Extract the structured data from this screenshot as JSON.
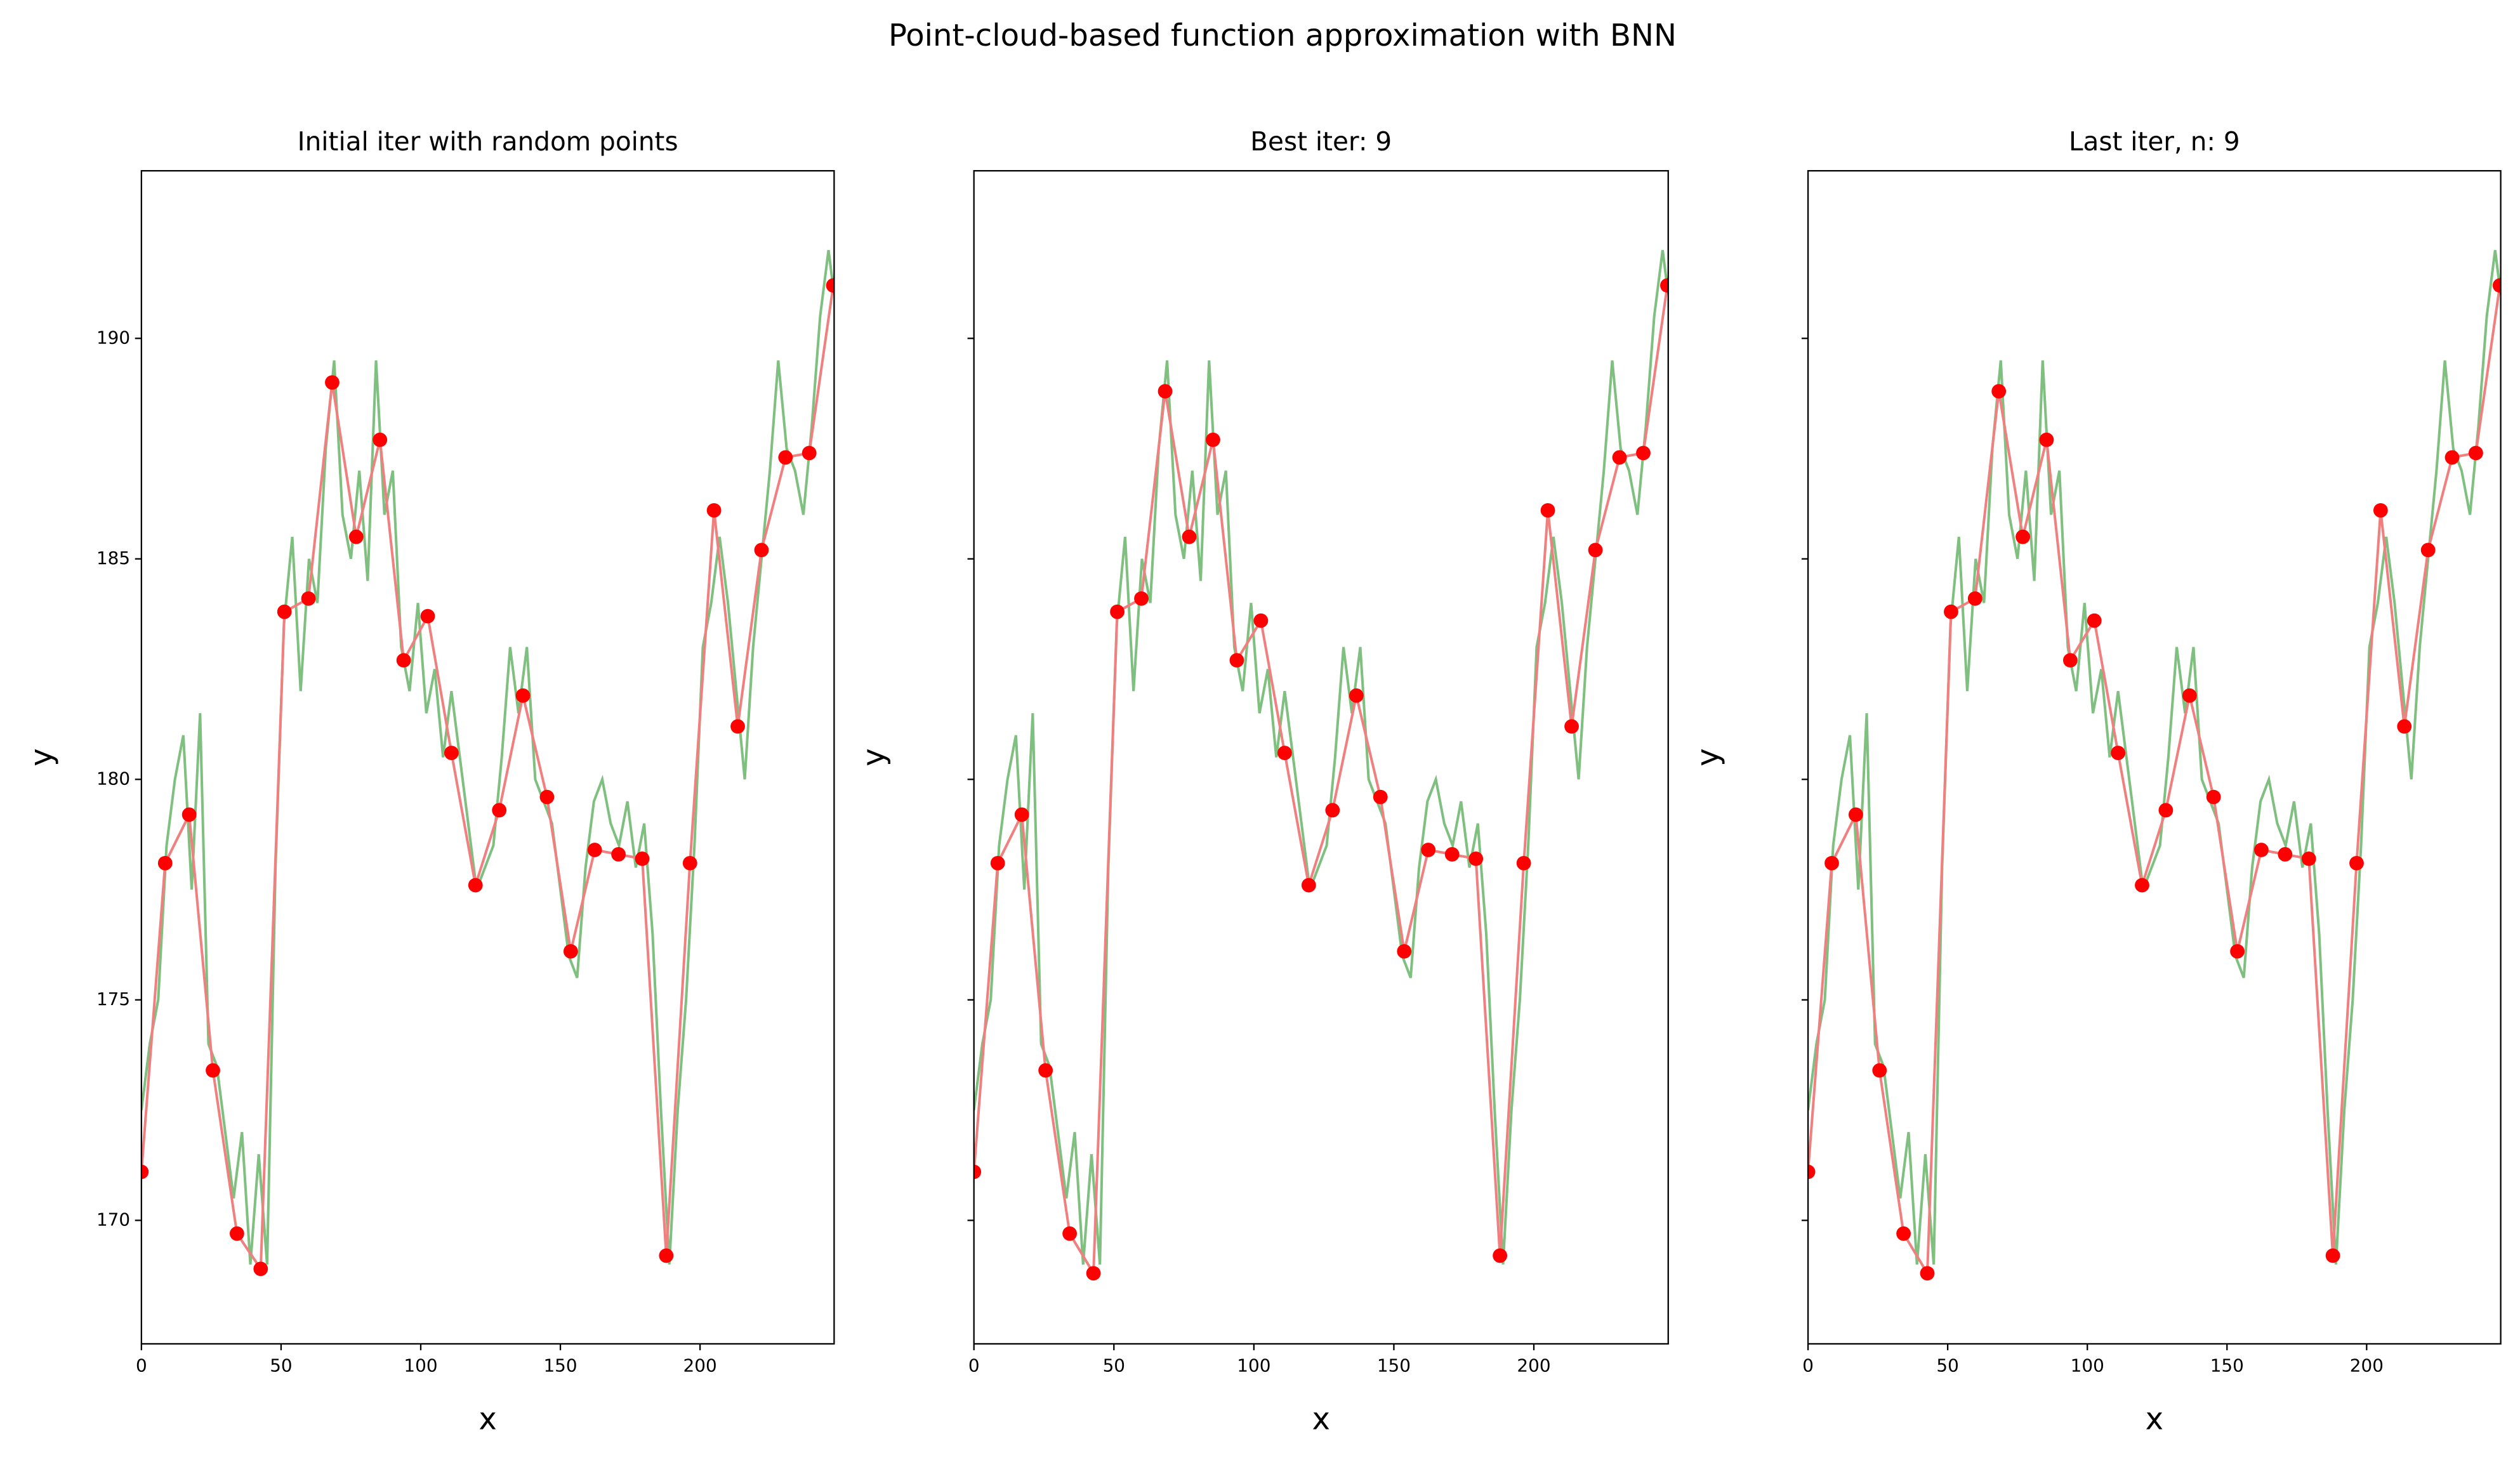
{
  "title": "Point-cloud-based function approximation with BNN",
  "chart_data": [
    {
      "type": "line",
      "title": "Initial iter with random points",
      "x_label": "x",
      "y_label": "y",
      "xlim": [
        0,
        248
      ],
      "ylim": [
        167.2,
        193.8
      ],
      "xticks": [
        0,
        50,
        100,
        150,
        200
      ],
      "yticks": [
        170,
        175,
        180,
        185,
        190
      ],
      "show_ytick_labels": true,
      "series": [
        {
          "color": "#7fbf7f",
          "x": [
            0,
            3,
            6,
            9,
            12,
            15,
            18,
            21,
            24,
            27,
            30,
            33,
            36,
            39,
            42,
            45,
            48,
            51,
            54,
            57,
            60,
            63,
            66,
            69,
            72,
            75,
            78,
            81,
            84,
            87,
            90,
            93,
            96,
            99,
            102,
            105,
            108,
            111,
            114,
            117,
            120,
            123,
            126,
            129,
            132,
            135,
            138,
            141,
            144,
            147,
            150,
            153,
            156,
            159,
            162,
            165,
            168,
            171,
            174,
            177,
            180,
            183,
            186,
            189,
            192,
            195,
            198,
            201,
            204,
            207,
            210,
            213,
            216,
            219,
            222,
            225,
            228,
            231,
            234,
            237,
            240,
            243,
            246,
            248
          ],
          "values": [
            172.5,
            174,
            175,
            178.5,
            180,
            181,
            177.5,
            181.5,
            174,
            173.5,
            172,
            170.5,
            172,
            169,
            171.5,
            169,
            178,
            183.5,
            185.5,
            182,
            185,
            184,
            187.5,
            189.5,
            186,
            185,
            187,
            184.5,
            189.5,
            186,
            187,
            183,
            182,
            184,
            181.5,
            182.5,
            180.5,
            182,
            180.5,
            179,
            177.5,
            178,
            178.5,
            180.5,
            183,
            181.5,
            183,
            180,
            179.5,
            179,
            177.5,
            176,
            175.5,
            178,
            179.5,
            180,
            179,
            178.5,
            179.5,
            178,
            179,
            176.5,
            172.5,
            169,
            172.5,
            175,
            178.5,
            183,
            184,
            185.5,
            184,
            182,
            180,
            183,
            185,
            187,
            189.5,
            187.5,
            187,
            186,
            188,
            190.5,
            192,
            191
          ]
        },
        {
          "color": "#ff0000",
          "line_color": "#f08080",
          "marker": "o",
          "x": [
            0,
            8.5,
            17.1,
            25.6,
            34.2,
            42.7,
            51.2,
            59.8,
            68.3,
            76.9,
            85.4,
            93.9,
            102.5,
            111,
            119.6,
            128.1,
            136.6,
            145.2,
            153.7,
            162.3,
            170.8,
            179.3,
            187.9,
            196.4,
            205,
            213.5,
            222,
            230.6,
            239.1,
            247.7
          ],
          "values": [
            171.1,
            178.1,
            179.2,
            173.4,
            169.7,
            168.9,
            183.8,
            184.1,
            189.0,
            185.5,
            187.7,
            182.7,
            183.7,
            180.6,
            177.6,
            179.3,
            181.9,
            179.6,
            176.1,
            178.4,
            178.3,
            178.2,
            169.2,
            178.1,
            186.1,
            181.2,
            185.2,
            187.3,
            187.4,
            191.2
          ]
        }
      ]
    },
    {
      "type": "line",
      "title": "Best iter: 9",
      "x_label": "x",
      "y_label": "y",
      "xlim": [
        0,
        248
      ],
      "ylim": [
        167.2,
        193.8
      ],
      "xticks": [
        0,
        50,
        100,
        150,
        200
      ],
      "yticks": [
        170,
        175,
        180,
        185,
        190
      ],
      "show_ytick_labels": false,
      "series": [
        {
          "color": "#7fbf7f",
          "x": [
            0,
            3,
            6,
            9,
            12,
            15,
            18,
            21,
            24,
            27,
            30,
            33,
            36,
            39,
            42,
            45,
            48,
            51,
            54,
            57,
            60,
            63,
            66,
            69,
            72,
            75,
            78,
            81,
            84,
            87,
            90,
            93,
            96,
            99,
            102,
            105,
            108,
            111,
            114,
            117,
            120,
            123,
            126,
            129,
            132,
            135,
            138,
            141,
            144,
            147,
            150,
            153,
            156,
            159,
            162,
            165,
            168,
            171,
            174,
            177,
            180,
            183,
            186,
            189,
            192,
            195,
            198,
            201,
            204,
            207,
            210,
            213,
            216,
            219,
            222,
            225,
            228,
            231,
            234,
            237,
            240,
            243,
            246,
            248
          ],
          "values": [
            172.5,
            174,
            175,
            178.5,
            180,
            181,
            177.5,
            181.5,
            174,
            173.5,
            172,
            170.5,
            172,
            169,
            171.5,
            169,
            178,
            183.5,
            185.5,
            182,
            185,
            184,
            187.5,
            189.5,
            186,
            185,
            187,
            184.5,
            189.5,
            186,
            187,
            183,
            182,
            184,
            181.5,
            182.5,
            180.5,
            182,
            180.5,
            179,
            177.5,
            178,
            178.5,
            180.5,
            183,
            181.5,
            183,
            180,
            179.5,
            179,
            177.5,
            176,
            175.5,
            178,
            179.5,
            180,
            179,
            178.5,
            179.5,
            178,
            179,
            176.5,
            172.5,
            169,
            172.5,
            175,
            178.5,
            183,
            184,
            185.5,
            184,
            182,
            180,
            183,
            185,
            187,
            189.5,
            187.5,
            187,
            186,
            188,
            190.5,
            192,
            191
          ]
        },
        {
          "color": "#ff0000",
          "line_color": "#f08080",
          "marker": "o",
          "x": [
            0,
            8.5,
            17.1,
            25.6,
            34.2,
            42.7,
            51.2,
            59.8,
            68.3,
            76.9,
            85.4,
            93.9,
            102.5,
            111,
            119.6,
            128.1,
            136.6,
            145.2,
            153.7,
            162.3,
            170.8,
            179.3,
            187.9,
            196.4,
            205,
            213.5,
            222,
            230.6,
            239.1,
            247.7
          ],
          "values": [
            171.1,
            178.1,
            179.2,
            173.4,
            169.7,
            168.8,
            183.8,
            184.1,
            188.8,
            185.5,
            187.7,
            182.7,
            183.6,
            180.6,
            177.6,
            179.3,
            181.9,
            179.6,
            176.1,
            178.4,
            178.3,
            178.2,
            169.2,
            178.1,
            186.1,
            181.2,
            185.2,
            187.3,
            187.4,
            191.2
          ]
        }
      ]
    },
    {
      "type": "line",
      "title": "Last iter, n: 9",
      "x_label": "x",
      "y_label": "y",
      "xlim": [
        0,
        248
      ],
      "ylim": [
        167.2,
        193.8
      ],
      "xticks": [
        0,
        50,
        100,
        150,
        200
      ],
      "yticks": [
        170,
        175,
        180,
        185,
        190
      ],
      "show_ytick_labels": false,
      "series": [
        {
          "color": "#7fbf7f",
          "x": [
            0,
            3,
            6,
            9,
            12,
            15,
            18,
            21,
            24,
            27,
            30,
            33,
            36,
            39,
            42,
            45,
            48,
            51,
            54,
            57,
            60,
            63,
            66,
            69,
            72,
            75,
            78,
            81,
            84,
            87,
            90,
            93,
            96,
            99,
            102,
            105,
            108,
            111,
            114,
            117,
            120,
            123,
            126,
            129,
            132,
            135,
            138,
            141,
            144,
            147,
            150,
            153,
            156,
            159,
            162,
            165,
            168,
            171,
            174,
            177,
            180,
            183,
            186,
            189,
            192,
            195,
            198,
            201,
            204,
            207,
            210,
            213,
            216,
            219,
            222,
            225,
            228,
            231,
            234,
            237,
            240,
            243,
            246,
            248
          ],
          "values": [
            172.5,
            174,
            175,
            178.5,
            180,
            181,
            177.5,
            181.5,
            174,
            173.5,
            172,
            170.5,
            172,
            169,
            171.5,
            169,
            178,
            183.5,
            185.5,
            182,
            185,
            184,
            187.5,
            189.5,
            186,
            185,
            187,
            184.5,
            189.5,
            186,
            187,
            183,
            182,
            184,
            181.5,
            182.5,
            180.5,
            182,
            180.5,
            179,
            177.5,
            178,
            178.5,
            180.5,
            183,
            181.5,
            183,
            180,
            179.5,
            179,
            177.5,
            176,
            175.5,
            178,
            179.5,
            180,
            179,
            178.5,
            179.5,
            178,
            179,
            176.5,
            172.5,
            169,
            172.5,
            175,
            178.5,
            183,
            184,
            185.5,
            184,
            182,
            180,
            183,
            185,
            187,
            189.5,
            187.5,
            187,
            186,
            188,
            190.5,
            192,
            191
          ]
        },
        {
          "color": "#ff0000",
          "line_color": "#f08080",
          "marker": "o",
          "x": [
            0,
            8.5,
            17.1,
            25.6,
            34.2,
            42.7,
            51.2,
            59.8,
            68.3,
            76.9,
            85.4,
            93.9,
            102.5,
            111,
            119.6,
            128.1,
            136.6,
            145.2,
            153.7,
            162.3,
            170.8,
            179.3,
            187.9,
            196.4,
            205,
            213.5,
            222,
            230.6,
            239.1,
            247.7
          ],
          "values": [
            171.1,
            178.1,
            179.2,
            173.4,
            169.7,
            168.8,
            183.8,
            184.1,
            188.8,
            185.5,
            187.7,
            182.7,
            183.6,
            180.6,
            177.6,
            179.3,
            181.9,
            179.6,
            176.1,
            178.4,
            178.3,
            178.2,
            169.2,
            178.1,
            186.1,
            181.2,
            185.2,
            187.3,
            187.4,
            191.2
          ]
        }
      ]
    }
  ]
}
